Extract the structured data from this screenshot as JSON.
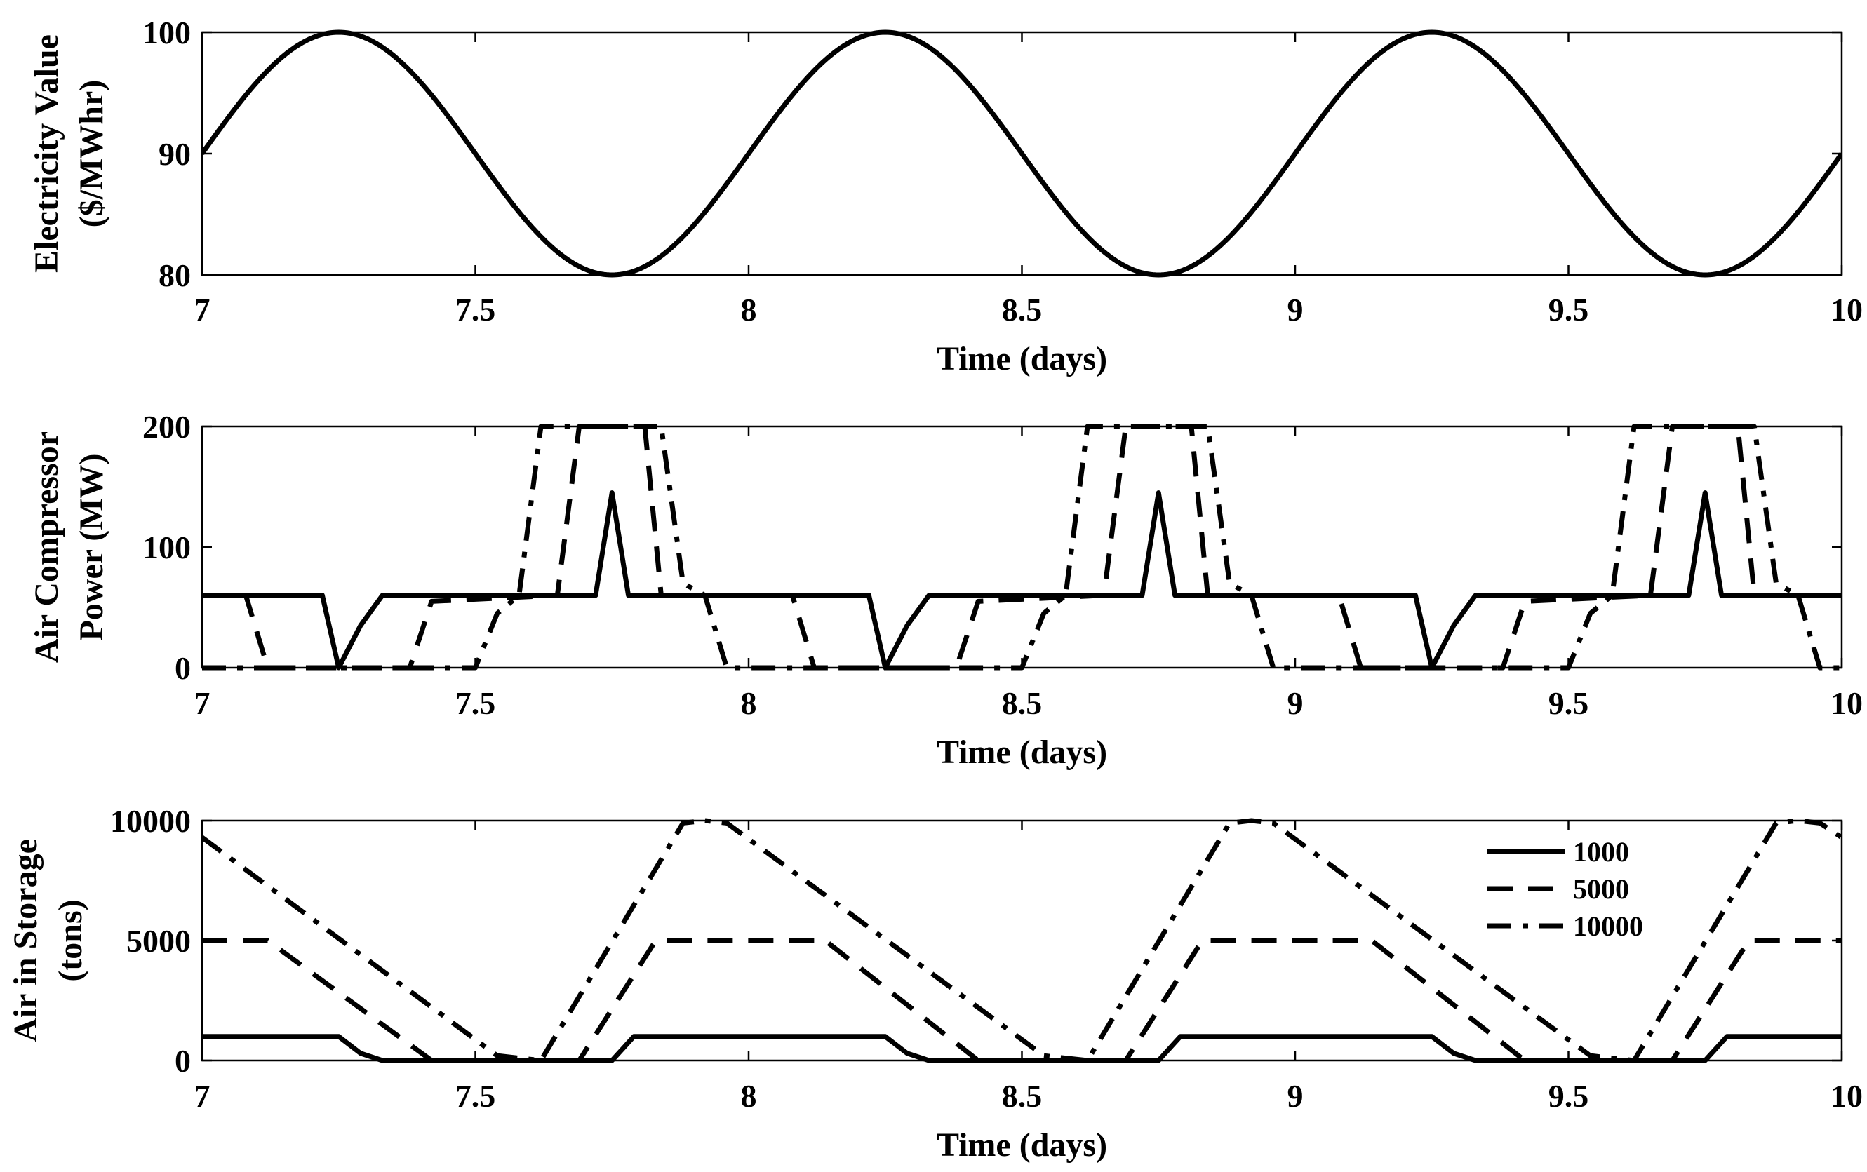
{
  "colors": {
    "background": "#ffffff",
    "line": "#000000"
  },
  "chart_data": [
    {
      "type": "line",
      "xlabel": "Time (days)",
      "ylabel": [
        "Electricity Value",
        "($/MWhr)"
      ],
      "xlim": [
        7,
        10
      ],
      "ylim": [
        80,
        100
      ],
      "xticks": [
        "7",
        "7.5",
        "8",
        "8.5",
        "9",
        "9.5",
        "10"
      ],
      "yticks": [
        "80",
        "90",
        "100"
      ],
      "grid": false,
      "series": [
        {
          "style": "solid",
          "function": "sine",
          "mean": 90,
          "amplitude": 10,
          "period_days": 1,
          "phase_origin_day": 7
        }
      ]
    },
    {
      "type": "line",
      "xlabel": "Time (days)",
      "ylabel": [
        "Air Compressor",
        "Power (MW)"
      ],
      "xlim": [
        7,
        10
      ],
      "ylim": [
        0,
        200
      ],
      "xticks": [
        "7",
        "7.5",
        "8",
        "8.5",
        "9",
        "9.5",
        "10"
      ],
      "yticks": [
        "0",
        "100",
        "200"
      ],
      "grid": false,
      "series": [
        {
          "name": "1000",
          "style": "solid",
          "x": [
            7,
            7.22,
            7.25,
            7.29,
            7.33,
            7.72,
            7.75,
            7.78,
            8.22,
            8.25,
            8.29,
            8.33,
            8.72,
            8.75,
            8.78,
            9.22,
            9.25,
            9.29,
            9.33,
            9.72,
            9.75,
            9.78,
            10
          ],
          "y": [
            60,
            60,
            0,
            35,
            60,
            60,
            145,
            60,
            60,
            0,
            35,
            60,
            60,
            145,
            60,
            60,
            0,
            35,
            60,
            60,
            145,
            60,
            60
          ]
        },
        {
          "name": "5000",
          "style": "dashed",
          "x": [
            7,
            7.08,
            7.12,
            7.38,
            7.42,
            7.65,
            7.69,
            7.81,
            7.84,
            8.08,
            8.12,
            8.38,
            8.42,
            8.65,
            8.69,
            8.81,
            8.84,
            9.08,
            9.12,
            9.38,
            9.42,
            9.65,
            9.69,
            9.81,
            9.84,
            10
          ],
          "y": [
            60,
            60,
            0,
            0,
            55,
            60,
            200,
            200,
            60,
            60,
            0,
            0,
            55,
            60,
            200,
            200,
            60,
            60,
            0,
            0,
            55,
            60,
            200,
            200,
            60,
            60
          ]
        },
        {
          "name": "10000",
          "style": "dashdot",
          "x": [
            7,
            7.5,
            7.54,
            7.58,
            7.62,
            7.84,
            7.88,
            7.92,
            7.96,
            8.5,
            8.54,
            8.58,
            8.62,
            8.84,
            8.88,
            8.92,
            8.96,
            9.5,
            9.54,
            9.58,
            9.62,
            9.84,
            9.88,
            9.92,
            9.96,
            10
          ],
          "y": [
            0,
            0,
            45,
            60,
            200,
            200,
            70,
            60,
            0,
            0,
            45,
            60,
            200,
            200,
            70,
            60,
            0,
            0,
            45,
            60,
            200,
            200,
            70,
            60,
            0,
            0
          ]
        }
      ]
    },
    {
      "type": "line",
      "xlabel": "Time (days)",
      "ylabel": [
        "Air in Storage",
        "(tons)"
      ],
      "xlim": [
        7,
        10
      ],
      "ylim": [
        0,
        10000
      ],
      "xticks": [
        "7",
        "7.5",
        "8",
        "8.5",
        "9",
        "9.5",
        "10"
      ],
      "yticks": [
        "0",
        "5000",
        "10000"
      ],
      "grid": false,
      "legend_position": "top-right",
      "series": [
        {
          "name": "1000",
          "style": "solid",
          "x": [
            7,
            7.25,
            7.29,
            7.33,
            7.75,
            7.79,
            8.25,
            8.29,
            8.33,
            8.75,
            8.79,
            9.25,
            9.29,
            9.33,
            9.75,
            9.79,
            10
          ],
          "y": [
            1000,
            1000,
            300,
            0,
            0,
            1000,
            1000,
            300,
            0,
            0,
            1000,
            1000,
            300,
            0,
            0,
            1000,
            1000
          ]
        },
        {
          "name": "5000",
          "style": "dashed",
          "x": [
            7,
            7.12,
            7.42,
            7.69,
            7.83,
            8.14,
            8.42,
            8.69,
            8.83,
            9.14,
            9.42,
            9.69,
            9.83,
            10
          ],
          "y": [
            5000,
            5000,
            0,
            0,
            5000,
            5000,
            0,
            0,
            5000,
            5000,
            0,
            0,
            5000,
            5000
          ]
        },
        {
          "name": "10000",
          "style": "dashdot",
          "x": [
            7,
            7.54,
            7.62,
            7.88,
            7.92,
            7.96,
            8.54,
            8.62,
            8.88,
            8.92,
            8.96,
            9.54,
            9.62,
            9.88,
            9.92,
            9.96,
            10
          ],
          "y": [
            9300,
            200,
            0,
            9900,
            10000,
            9900,
            200,
            0,
            9900,
            10000,
            9900,
            200,
            0,
            9900,
            10000,
            9900,
            9300
          ]
        }
      ]
    }
  ]
}
